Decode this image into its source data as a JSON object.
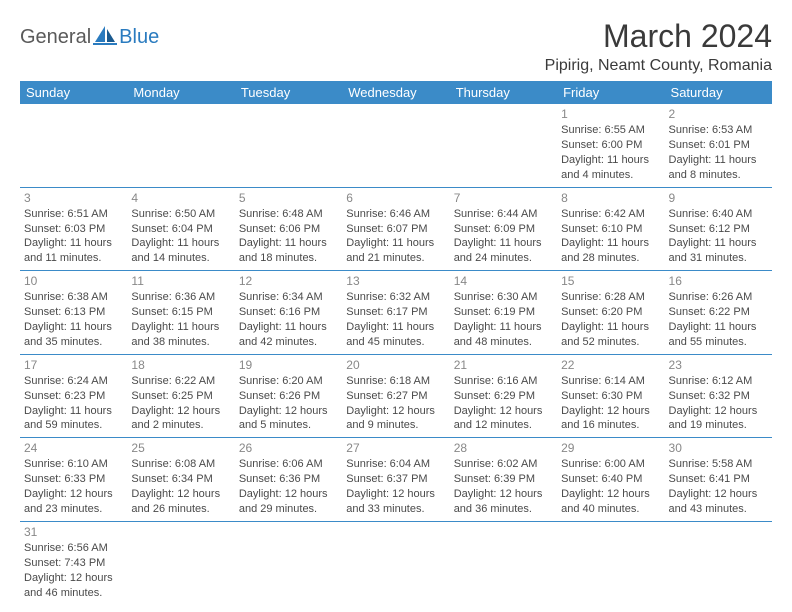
{
  "logo": {
    "general": "General",
    "blue": "Blue"
  },
  "header": {
    "month_title": "March 2024",
    "location": "Pipirig, Neamt County, Romania"
  },
  "colors": {
    "header_bg": "#3b8bc8",
    "header_text": "#ffffff",
    "border": "#3b8bc8",
    "day_num": "#888888",
    "body_text": "#4a4a4a",
    "title_text": "#3a3a3a"
  },
  "weekdays": [
    "Sunday",
    "Monday",
    "Tuesday",
    "Wednesday",
    "Thursday",
    "Friday",
    "Saturday"
  ],
  "weeks": [
    [
      null,
      null,
      null,
      null,
      null,
      {
        "num": "1",
        "sunrise": "Sunrise: 6:55 AM",
        "sunset": "Sunset: 6:00 PM",
        "daylight": "Daylight: 11 hours and 4 minutes."
      },
      {
        "num": "2",
        "sunrise": "Sunrise: 6:53 AM",
        "sunset": "Sunset: 6:01 PM",
        "daylight": "Daylight: 11 hours and 8 minutes."
      }
    ],
    [
      {
        "num": "3",
        "sunrise": "Sunrise: 6:51 AM",
        "sunset": "Sunset: 6:03 PM",
        "daylight": "Daylight: 11 hours and 11 minutes."
      },
      {
        "num": "4",
        "sunrise": "Sunrise: 6:50 AM",
        "sunset": "Sunset: 6:04 PM",
        "daylight": "Daylight: 11 hours and 14 minutes."
      },
      {
        "num": "5",
        "sunrise": "Sunrise: 6:48 AM",
        "sunset": "Sunset: 6:06 PM",
        "daylight": "Daylight: 11 hours and 18 minutes."
      },
      {
        "num": "6",
        "sunrise": "Sunrise: 6:46 AM",
        "sunset": "Sunset: 6:07 PM",
        "daylight": "Daylight: 11 hours and 21 minutes."
      },
      {
        "num": "7",
        "sunrise": "Sunrise: 6:44 AM",
        "sunset": "Sunset: 6:09 PM",
        "daylight": "Daylight: 11 hours and 24 minutes."
      },
      {
        "num": "8",
        "sunrise": "Sunrise: 6:42 AM",
        "sunset": "Sunset: 6:10 PM",
        "daylight": "Daylight: 11 hours and 28 minutes."
      },
      {
        "num": "9",
        "sunrise": "Sunrise: 6:40 AM",
        "sunset": "Sunset: 6:12 PM",
        "daylight": "Daylight: 11 hours and 31 minutes."
      }
    ],
    [
      {
        "num": "10",
        "sunrise": "Sunrise: 6:38 AM",
        "sunset": "Sunset: 6:13 PM",
        "daylight": "Daylight: 11 hours and 35 minutes."
      },
      {
        "num": "11",
        "sunrise": "Sunrise: 6:36 AM",
        "sunset": "Sunset: 6:15 PM",
        "daylight": "Daylight: 11 hours and 38 minutes."
      },
      {
        "num": "12",
        "sunrise": "Sunrise: 6:34 AM",
        "sunset": "Sunset: 6:16 PM",
        "daylight": "Daylight: 11 hours and 42 minutes."
      },
      {
        "num": "13",
        "sunrise": "Sunrise: 6:32 AM",
        "sunset": "Sunset: 6:17 PM",
        "daylight": "Daylight: 11 hours and 45 minutes."
      },
      {
        "num": "14",
        "sunrise": "Sunrise: 6:30 AM",
        "sunset": "Sunset: 6:19 PM",
        "daylight": "Daylight: 11 hours and 48 minutes."
      },
      {
        "num": "15",
        "sunrise": "Sunrise: 6:28 AM",
        "sunset": "Sunset: 6:20 PM",
        "daylight": "Daylight: 11 hours and 52 minutes."
      },
      {
        "num": "16",
        "sunrise": "Sunrise: 6:26 AM",
        "sunset": "Sunset: 6:22 PM",
        "daylight": "Daylight: 11 hours and 55 minutes."
      }
    ],
    [
      {
        "num": "17",
        "sunrise": "Sunrise: 6:24 AM",
        "sunset": "Sunset: 6:23 PM",
        "daylight": "Daylight: 11 hours and 59 minutes."
      },
      {
        "num": "18",
        "sunrise": "Sunrise: 6:22 AM",
        "sunset": "Sunset: 6:25 PM",
        "daylight": "Daylight: 12 hours and 2 minutes."
      },
      {
        "num": "19",
        "sunrise": "Sunrise: 6:20 AM",
        "sunset": "Sunset: 6:26 PM",
        "daylight": "Daylight: 12 hours and 5 minutes."
      },
      {
        "num": "20",
        "sunrise": "Sunrise: 6:18 AM",
        "sunset": "Sunset: 6:27 PM",
        "daylight": "Daylight: 12 hours and 9 minutes."
      },
      {
        "num": "21",
        "sunrise": "Sunrise: 6:16 AM",
        "sunset": "Sunset: 6:29 PM",
        "daylight": "Daylight: 12 hours and 12 minutes."
      },
      {
        "num": "22",
        "sunrise": "Sunrise: 6:14 AM",
        "sunset": "Sunset: 6:30 PM",
        "daylight": "Daylight: 12 hours and 16 minutes."
      },
      {
        "num": "23",
        "sunrise": "Sunrise: 6:12 AM",
        "sunset": "Sunset: 6:32 PM",
        "daylight": "Daylight: 12 hours and 19 minutes."
      }
    ],
    [
      {
        "num": "24",
        "sunrise": "Sunrise: 6:10 AM",
        "sunset": "Sunset: 6:33 PM",
        "daylight": "Daylight: 12 hours and 23 minutes."
      },
      {
        "num": "25",
        "sunrise": "Sunrise: 6:08 AM",
        "sunset": "Sunset: 6:34 PM",
        "daylight": "Daylight: 12 hours and 26 minutes."
      },
      {
        "num": "26",
        "sunrise": "Sunrise: 6:06 AM",
        "sunset": "Sunset: 6:36 PM",
        "daylight": "Daylight: 12 hours and 29 minutes."
      },
      {
        "num": "27",
        "sunrise": "Sunrise: 6:04 AM",
        "sunset": "Sunset: 6:37 PM",
        "daylight": "Daylight: 12 hours and 33 minutes."
      },
      {
        "num": "28",
        "sunrise": "Sunrise: 6:02 AM",
        "sunset": "Sunset: 6:39 PM",
        "daylight": "Daylight: 12 hours and 36 minutes."
      },
      {
        "num": "29",
        "sunrise": "Sunrise: 6:00 AM",
        "sunset": "Sunset: 6:40 PM",
        "daylight": "Daylight: 12 hours and 40 minutes."
      },
      {
        "num": "30",
        "sunrise": "Sunrise: 5:58 AM",
        "sunset": "Sunset: 6:41 PM",
        "daylight": "Daylight: 12 hours and 43 minutes."
      }
    ],
    [
      {
        "num": "31",
        "sunrise": "Sunrise: 6:56 AM",
        "sunset": "Sunset: 7:43 PM",
        "daylight": "Daylight: 12 hours and 46 minutes."
      },
      null,
      null,
      null,
      null,
      null,
      null
    ]
  ]
}
